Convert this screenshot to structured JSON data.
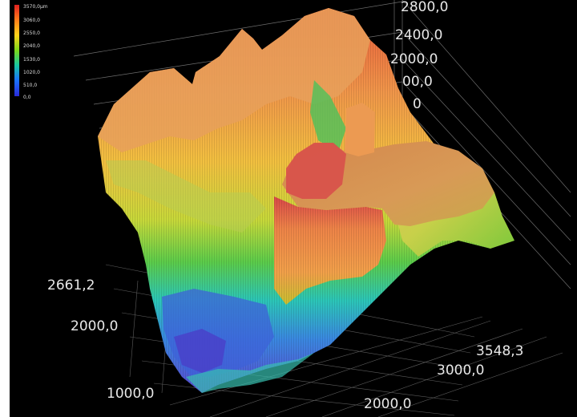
{
  "legend": {
    "ticks": [
      "3570,0µm",
      "3060,0",
      "2550,0",
      "2040,0",
      "1530,0",
      "1020,0",
      "510,0",
      "0,0"
    ]
  },
  "axes": {
    "z_ticks": [
      "2800,0",
      "2400,0",
      "2000,0",
      "00,0",
      "0"
    ],
    "y_ticks": [
      "2661,2",
      "2000,0",
      "1000,0"
    ],
    "x_ticks": [
      "3548,3",
      "3000,0",
      "2000,0"
    ]
  },
  "colors": {
    "background": "#000000",
    "grid": "#9a9a9a",
    "high": "#e02020",
    "mid_high": "#ff8a2a",
    "mid": "#ffd21a",
    "mid_low": "#7ad81a",
    "low": "#18b8c8",
    "lowest": "#3a3ad8"
  }
}
